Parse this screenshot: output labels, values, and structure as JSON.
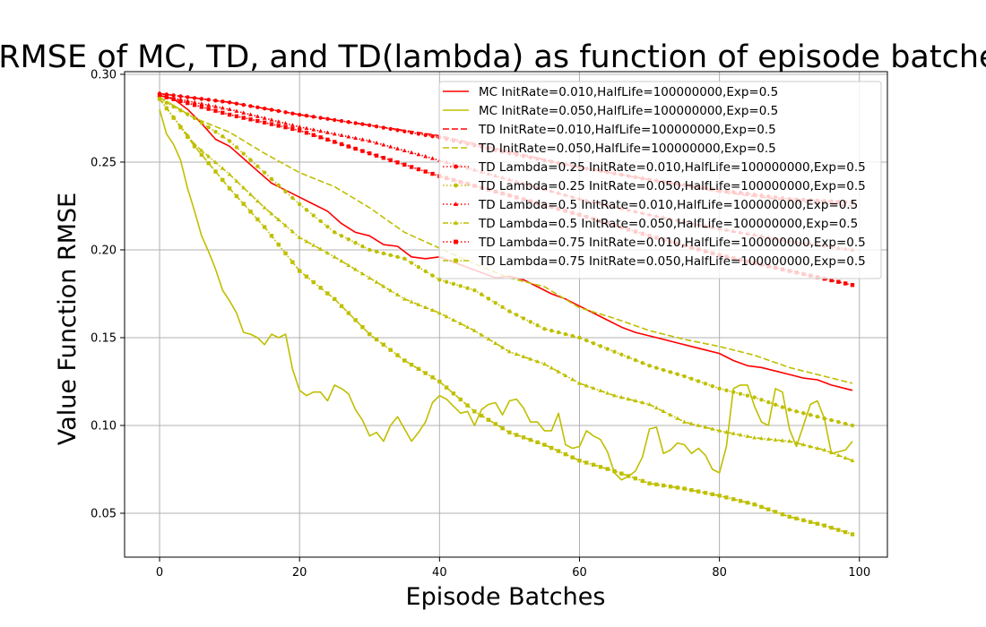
{
  "chart_data": {
    "type": "line",
    "title": "RMSE of MC, TD, and TD(lambda) as function of episode batches",
    "xlabel": "Episode Batches",
    "ylabel": "Value Function RMSE",
    "xlim": [
      -5,
      104
    ],
    "ylim": [
      0.025,
      0.3015
    ],
    "xticks": [
      0,
      20,
      40,
      60,
      80,
      100
    ],
    "yticks": [
      0.05,
      0.1,
      0.15,
      0.2,
      0.25,
      0.3
    ],
    "xtick_labels": [
      "0",
      "20",
      "40",
      "60",
      "80",
      "100"
    ],
    "ytick_labels": [
      "0.05",
      "0.10",
      "0.15",
      "0.20",
      "0.25",
      "0.30"
    ],
    "grid": true,
    "legend_position": "top-right",
    "series": [
      {
        "name": "MC InitRate=0.010,HalfLife=100000000,Exp=0.5",
        "color": "#ff0000",
        "style": "solid",
        "marker": "none",
        "points": [
          [
            0,
            0.288
          ],
          [
            2,
            0.286
          ],
          [
            4,
            0.28
          ],
          [
            6,
            0.272
          ],
          [
            8,
            0.263
          ],
          [
            10,
            0.259
          ],
          [
            12,
            0.252
          ],
          [
            14,
            0.245
          ],
          [
            16,
            0.238
          ],
          [
            18,
            0.234
          ],
          [
            20,
            0.23
          ],
          [
            22,
            0.226
          ],
          [
            24,
            0.222
          ],
          [
            26,
            0.215
          ],
          [
            28,
            0.21
          ],
          [
            30,
            0.208
          ],
          [
            32,
            0.203
          ],
          [
            34,
            0.202
          ],
          [
            36,
            0.196
          ],
          [
            38,
            0.195
          ],
          [
            40,
            0.196
          ],
          [
            42,
            0.193
          ],
          [
            44,
            0.19
          ],
          [
            46,
            0.187
          ],
          [
            48,
            0.184
          ],
          [
            50,
            0.185
          ],
          [
            52,
            0.183
          ],
          [
            54,
            0.179
          ],
          [
            56,
            0.175
          ],
          [
            58,
            0.172
          ],
          [
            60,
            0.168
          ],
          [
            62,
            0.164
          ],
          [
            64,
            0.16
          ],
          [
            66,
            0.156
          ],
          [
            68,
            0.153
          ],
          [
            70,
            0.151
          ],
          [
            72,
            0.149
          ],
          [
            74,
            0.147
          ],
          [
            76,
            0.145
          ],
          [
            78,
            0.143
          ],
          [
            80,
            0.141
          ],
          [
            82,
            0.137
          ],
          [
            84,
            0.134
          ],
          [
            86,
            0.133
          ],
          [
            88,
            0.131
          ],
          [
            90,
            0.129
          ],
          [
            92,
            0.127
          ],
          [
            94,
            0.126
          ],
          [
            96,
            0.123
          ],
          [
            98,
            0.121
          ],
          [
            99,
            0.12
          ]
        ]
      },
      {
        "name": "MC InitRate=0.050,HalfLife=100000000,Exp=0.5",
        "color": "#bfbf00",
        "style": "solid",
        "marker": "none",
        "points": [
          [
            0,
            0.28
          ],
          [
            1,
            0.266
          ],
          [
            2,
            0.26
          ],
          [
            3,
            0.251
          ],
          [
            4,
            0.235
          ],
          [
            5,
            0.222
          ],
          [
            6,
            0.208
          ],
          [
            7,
            0.199
          ],
          [
            8,
            0.189
          ],
          [
            9,
            0.177
          ],
          [
            10,
            0.171
          ],
          [
            11,
            0.164
          ],
          [
            12,
            0.153
          ],
          [
            13,
            0.152
          ],
          [
            14,
            0.15
          ],
          [
            15,
            0.146
          ],
          [
            16,
            0.152
          ],
          [
            17,
            0.15
          ],
          [
            18,
            0.152
          ],
          [
            19,
            0.132
          ],
          [
            20,
            0.12
          ],
          [
            21,
            0.117
          ],
          [
            22,
            0.119
          ],
          [
            23,
            0.119
          ],
          [
            24,
            0.114
          ],
          [
            25,
            0.123
          ],
          [
            26,
            0.121
          ],
          [
            27,
            0.118
          ],
          [
            28,
            0.109
          ],
          [
            29,
            0.103
          ],
          [
            30,
            0.094
          ],
          [
            31,
            0.096
          ],
          [
            32,
            0.091
          ],
          [
            33,
            0.1
          ],
          [
            34,
            0.105
          ],
          [
            35,
            0.098
          ],
          [
            36,
            0.091
          ],
          [
            37,
            0.096
          ],
          [
            38,
            0.102
          ],
          [
            39,
            0.113
          ],
          [
            40,
            0.117
          ],
          [
            41,
            0.115
          ],
          [
            42,
            0.111
          ],
          [
            43,
            0.107
          ],
          [
            44,
            0.108
          ],
          [
            45,
            0.1
          ],
          [
            46,
            0.109
          ],
          [
            47,
            0.112
          ],
          [
            48,
            0.113
          ],
          [
            49,
            0.106
          ],
          [
            50,
            0.114
          ],
          [
            51,
            0.115
          ],
          [
            52,
            0.11
          ],
          [
            53,
            0.102
          ],
          [
            54,
            0.102
          ],
          [
            55,
            0.097
          ],
          [
            56,
            0.097
          ],
          [
            57,
            0.107
          ],
          [
            58,
            0.089
          ],
          [
            59,
            0.087
          ],
          [
            60,
            0.088
          ],
          [
            61,
            0.097
          ],
          [
            62,
            0.094
          ],
          [
            63,
            0.092
          ],
          [
            64,
            0.085
          ],
          [
            65,
            0.073
          ],
          [
            66,
            0.069
          ],
          [
            67,
            0.071
          ],
          [
            68,
            0.074
          ],
          [
            69,
            0.082
          ],
          [
            70,
            0.098
          ],
          [
            71,
            0.099
          ],
          [
            72,
            0.084
          ],
          [
            73,
            0.086
          ],
          [
            74,
            0.09
          ],
          [
            75,
            0.089
          ],
          [
            76,
            0.084
          ],
          [
            77,
            0.087
          ],
          [
            78,
            0.083
          ],
          [
            79,
            0.075
          ],
          [
            80,
            0.073
          ],
          [
            81,
            0.088
          ],
          [
            82,
            0.121
          ],
          [
            83,
            0.123
          ],
          [
            84,
            0.123
          ],
          [
            85,
            0.111
          ],
          [
            86,
            0.102
          ],
          [
            87,
            0.1
          ],
          [
            88,
            0.121
          ],
          [
            89,
            0.119
          ],
          [
            90,
            0.098
          ],
          [
            91,
            0.088
          ],
          [
            92,
            0.1
          ],
          [
            93,
            0.112
          ],
          [
            94,
            0.114
          ],
          [
            95,
            0.104
          ],
          [
            96,
            0.084
          ],
          [
            97,
            0.085
          ],
          [
            98,
            0.086
          ],
          [
            99,
            0.091
          ]
        ]
      },
      {
        "name": "TD InitRate=0.010,HalfLife=100000000,Exp=0.5",
        "color": "#ff0000",
        "style": "dashed",
        "marker": "none",
        "points": [
          [
            0,
            0.289
          ],
          [
            10,
            0.284
          ],
          [
            20,
            0.277
          ],
          [
            30,
            0.271
          ],
          [
            40,
            0.265
          ],
          [
            50,
            0.256
          ],
          [
            60,
            0.247
          ],
          [
            70,
            0.24
          ],
          [
            80,
            0.233
          ],
          [
            90,
            0.228
          ],
          [
            99,
            0.225
          ]
        ]
      },
      {
        "name": "TD InitRate=0.050,HalfLife=100000000,Exp=0.5",
        "color": "#bfbf00",
        "style": "dashed",
        "marker": "none",
        "points": [
          [
            0,
            0.287
          ],
          [
            5,
            0.275
          ],
          [
            10,
            0.267
          ],
          [
            15,
            0.255
          ],
          [
            20,
            0.244
          ],
          [
            25,
            0.236
          ],
          [
            30,
            0.224
          ],
          [
            35,
            0.21
          ],
          [
            40,
            0.201
          ],
          [
            45,
            0.192
          ],
          [
            50,
            0.184
          ],
          [
            55,
            0.179
          ],
          [
            60,
            0.167
          ],
          [
            65,
            0.161
          ],
          [
            70,
            0.154
          ],
          [
            75,
            0.149
          ],
          [
            80,
            0.145
          ],
          [
            85,
            0.14
          ],
          [
            90,
            0.133
          ],
          [
            95,
            0.128
          ],
          [
            99,
            0.124
          ]
        ]
      },
      {
        "name": "TD Lambda=0.25 InitRate=0.010,HalfLife=100000000,Exp=0.5",
        "color": "#ff0000",
        "style": "dotted",
        "marker": "circle",
        "points": [
          [
            0,
            0.289
          ],
          [
            10,
            0.284
          ],
          [
            20,
            0.277
          ],
          [
            30,
            0.271
          ],
          [
            40,
            0.264
          ],
          [
            50,
            0.255
          ],
          [
            60,
            0.247
          ],
          [
            70,
            0.24
          ],
          [
            80,
            0.234
          ],
          [
            90,
            0.229
          ],
          [
            99,
            0.227
          ]
        ]
      },
      {
        "name": "TD Lambda=0.25 InitRate=0.050,HalfLife=100000000,Exp=0.5",
        "color": "#bfbf00",
        "style": "dotted",
        "marker": "circle",
        "points": [
          [
            0,
            0.286
          ],
          [
            5,
            0.275
          ],
          [
            10,
            0.262
          ],
          [
            15,
            0.244
          ],
          [
            20,
            0.226
          ],
          [
            25,
            0.21
          ],
          [
            30,
            0.2
          ],
          [
            35,
            0.195
          ],
          [
            40,
            0.183
          ],
          [
            45,
            0.177
          ],
          [
            50,
            0.165
          ],
          [
            55,
            0.155
          ],
          [
            60,
            0.15
          ],
          [
            65,
            0.142
          ],
          [
            70,
            0.134
          ],
          [
            75,
            0.128
          ],
          [
            80,
            0.121
          ],
          [
            85,
            0.116
          ],
          [
            90,
            0.109
          ],
          [
            95,
            0.104
          ],
          [
            99,
            0.1
          ]
        ]
      },
      {
        "name": "TD Lambda=0.5 InitRate=0.010,HalfLife=100000000,Exp=0.5",
        "color": "#ff0000",
        "style": "dotted",
        "marker": "triangle",
        "points": [
          [
            0,
            0.288
          ],
          [
            10,
            0.28
          ],
          [
            20,
            0.27
          ],
          [
            30,
            0.262
          ],
          [
            40,
            0.251
          ],
          [
            50,
            0.24
          ],
          [
            60,
            0.229
          ],
          [
            70,
            0.22
          ],
          [
            80,
            0.212
          ],
          [
            90,
            0.205
          ],
          [
            99,
            0.2
          ]
        ]
      },
      {
        "name": "TD Lambda=0.5 InitRate=0.050,HalfLife=100000000,Exp=0.5",
        "color": "#bfbf00",
        "style": "dashdot",
        "marker": "triangle",
        "points": [
          [
            0,
            0.286
          ],
          [
            5,
            0.26
          ],
          [
            10,
            0.243
          ],
          [
            15,
            0.224
          ],
          [
            20,
            0.207
          ],
          [
            25,
            0.196
          ],
          [
            30,
            0.184
          ],
          [
            35,
            0.172
          ],
          [
            40,
            0.164
          ],
          [
            45,
            0.154
          ],
          [
            50,
            0.142
          ],
          [
            55,
            0.135
          ],
          [
            60,
            0.124
          ],
          [
            65,
            0.117
          ],
          [
            70,
            0.112
          ],
          [
            75,
            0.102
          ],
          [
            80,
            0.097
          ],
          [
            85,
            0.093
          ],
          [
            90,
            0.091
          ],
          [
            95,
            0.086
          ],
          [
            99,
            0.08
          ]
        ]
      },
      {
        "name": "TD Lambda=0.75 InitRate=0.010,HalfLife=100000000,Exp=0.5",
        "color": "#ff0000",
        "style": "dotted",
        "marker": "square",
        "points": [
          [
            0,
            0.288
          ],
          [
            10,
            0.277
          ],
          [
            20,
            0.268
          ],
          [
            30,
            0.255
          ],
          [
            40,
            0.242
          ],
          [
            50,
            0.231
          ],
          [
            60,
            0.22
          ],
          [
            70,
            0.208
          ],
          [
            80,
            0.197
          ],
          [
            90,
            0.188
          ],
          [
            99,
            0.18
          ]
        ]
      },
      {
        "name": "TD Lambda=0.75 InitRate=0.050,HalfLife=100000000,Exp=0.5",
        "color": "#bfbf00",
        "style": "dashdot",
        "marker": "square",
        "points": [
          [
            0,
            0.286
          ],
          [
            5,
            0.259
          ],
          [
            10,
            0.235
          ],
          [
            15,
            0.213
          ],
          [
            20,
            0.188
          ],
          [
            25,
            0.172
          ],
          [
            30,
            0.152
          ],
          [
            35,
            0.137
          ],
          [
            40,
            0.125
          ],
          [
            45,
            0.108
          ],
          [
            50,
            0.096
          ],
          [
            55,
            0.089
          ],
          [
            60,
            0.08
          ],
          [
            65,
            0.074
          ],
          [
            70,
            0.067
          ],
          [
            75,
            0.064
          ],
          [
            80,
            0.06
          ],
          [
            85,
            0.055
          ],
          [
            90,
            0.048
          ],
          [
            95,
            0.043
          ],
          [
            99,
            0.038
          ]
        ]
      }
    ]
  }
}
